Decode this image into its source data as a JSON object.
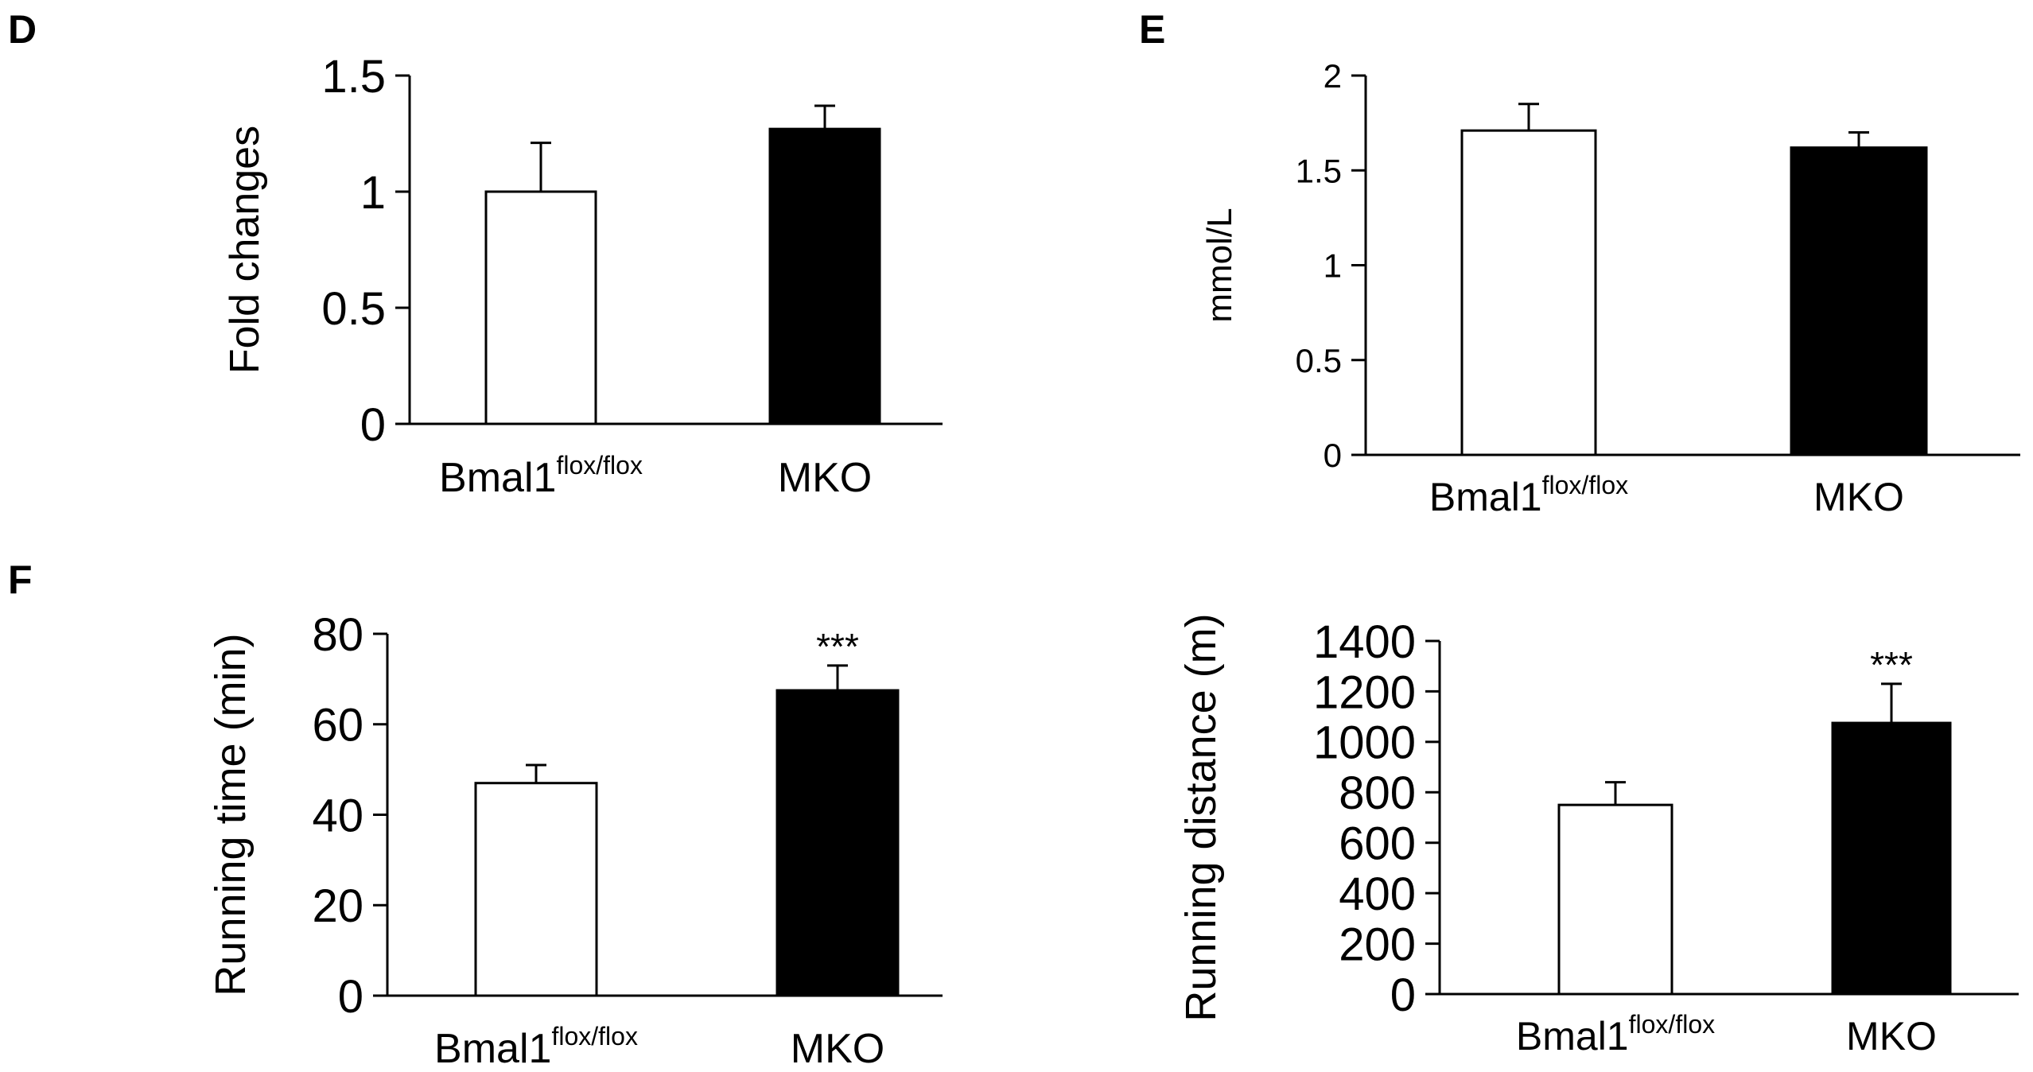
{
  "panels": {
    "D": "D",
    "E": "E",
    "F": "F"
  },
  "colors": {
    "control": "#ffffff",
    "mko": "#000000",
    "axis": "#000000"
  },
  "chart_data": [
    {
      "id": "D",
      "type": "bar",
      "ylabel": "Fold changes",
      "categories": [
        "Bmal1",
        "MKO"
      ],
      "category_superscripts": [
        "flox/flox",
        ""
      ],
      "values": [
        1.0,
        1.27
      ],
      "errors": [
        0.21,
        0.1
      ],
      "ylim": [
        0,
        1.5
      ],
      "yticks": [
        0,
        0.5,
        1,
        1.5
      ],
      "ytick_labels": [
        "0",
        "0.5",
        "1",
        "1.5"
      ],
      "significance": [
        "",
        ""
      ]
    },
    {
      "id": "E",
      "type": "bar",
      "ylabel": "mmol/L",
      "categories": [
        "Bmal1",
        "MKO"
      ],
      "category_superscripts": [
        "flox/flox",
        ""
      ],
      "values": [
        1.71,
        1.62
      ],
      "errors": [
        0.14,
        0.08
      ],
      "ylim": [
        0,
        2
      ],
      "yticks": [
        0,
        0.5,
        1,
        1.5,
        2
      ],
      "ytick_labels": [
        "0",
        "0.5",
        "1",
        "1.5",
        "2"
      ],
      "significance": [
        "",
        ""
      ]
    },
    {
      "id": "F1",
      "type": "bar",
      "ylabel": "Running time (min)",
      "categories": [
        "Bmal1",
        "MKO"
      ],
      "category_superscripts": [
        "flox/flox",
        ""
      ],
      "values": [
        47,
        67.5
      ],
      "errors": [
        4,
        5.5
      ],
      "ylim": [
        0,
        80
      ],
      "yticks": [
        0,
        20,
        40,
        60,
        80
      ],
      "ytick_labels": [
        "0",
        "20",
        "40",
        "60",
        "80"
      ],
      "significance": [
        "",
        "***"
      ]
    },
    {
      "id": "F2",
      "type": "bar",
      "ylabel": "Running distance (m)",
      "categories": [
        "Bmal1",
        "MKO"
      ],
      "category_superscripts": [
        "flox/flox",
        ""
      ],
      "values": [
        750,
        1075
      ],
      "errors": [
        90,
        155
      ],
      "ylim": [
        0,
        1400
      ],
      "yticks": [
        0,
        200,
        400,
        600,
        800,
        1000,
        1200,
        1400
      ],
      "ytick_labels": [
        "0",
        "200",
        "400",
        "600",
        "800",
        "1000",
        "1200",
        "1400"
      ],
      "significance": [
        "",
        "***"
      ]
    }
  ]
}
